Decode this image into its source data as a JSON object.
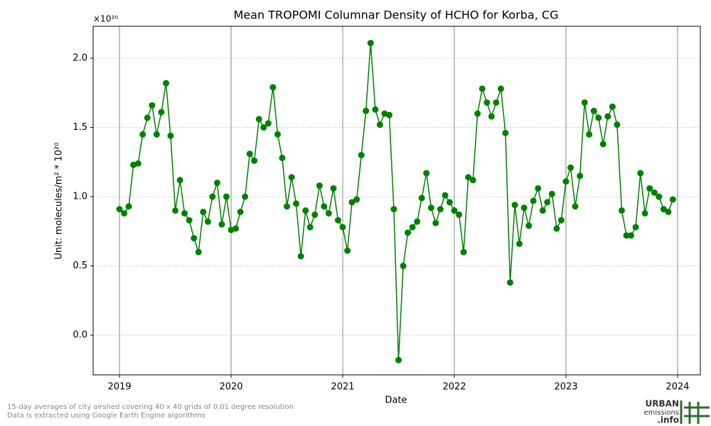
{
  "chart_data": {
    "type": "line",
    "title": "Mean TROPOMI Columnar Density of HCHO for Korba, CG",
    "x_label": "Date",
    "y_label": "Unit: molecules/m² * 10²⁰",
    "y_multiplier": "×10²⁰",
    "footnotes": [
      "15-day averages of city airshed covering 40 x 40 grids of 0.01 degree resolution",
      "Data is extracted using Google Earth Engine algorithms"
    ],
    "logo": [
      "URBAN",
      "emissions",
      ".info"
    ],
    "grid": true,
    "xlim": [
      2018.764,
      2024.204
    ],
    "xticks": [
      2019,
      2020,
      2021,
      2022,
      2023,
      2024
    ],
    "ylim": [
      -0.287,
      2.231
    ],
    "yticks": [
      {
        "value": 0,
        "label": "0.0"
      },
      {
        "value": 0.5,
        "label": "0.5"
      },
      {
        "value": 1,
        "label": "1.0"
      },
      {
        "value": 1.5,
        "label": "1.5"
      },
      {
        "value": 2,
        "label": "2.0"
      }
    ],
    "x": [
      2019.0,
      2019.042,
      2019.083,
      2019.125,
      2019.167,
      2019.208,
      2019.25,
      2019.292,
      2019.333,
      2019.375,
      2019.417,
      2019.458,
      2019.5,
      2019.542,
      2019.583,
      2019.625,
      2019.667,
      2019.708,
      2019.75,
      2019.792,
      2019.833,
      2019.875,
      2019.917,
      2019.958,
      2020.0,
      2020.042,
      2020.083,
      2020.125,
      2020.167,
      2020.208,
      2020.25,
      2020.292,
      2020.333,
      2020.375,
      2020.417,
      2020.458,
      2020.5,
      2020.542,
      2020.583,
      2020.625,
      2020.667,
      2020.708,
      2020.75,
      2020.792,
      2020.833,
      2020.875,
      2020.917,
      2020.958,
      2021.0,
      2021.042,
      2021.083,
      2021.125,
      2021.167,
      2021.208,
      2021.25,
      2021.292,
      2021.333,
      2021.375,
      2021.417,
      2021.458,
      2021.5,
      2021.542,
      2021.583,
      2021.625,
      2021.667,
      2021.708,
      2021.75,
      2021.792,
      2021.833,
      2021.875,
      2021.917,
      2021.958,
      2022.0,
      2022.042,
      2022.083,
      2022.125,
      2022.167,
      2022.208,
      2022.25,
      2022.292,
      2022.333,
      2022.375,
      2022.417,
      2022.458,
      2022.5,
      2022.542,
      2022.583,
      2022.625,
      2022.667,
      2022.708,
      2022.75,
      2022.792,
      2022.833,
      2022.875,
      2022.917,
      2022.958,
      2023.0,
      2023.042,
      2023.083,
      2023.125,
      2023.167,
      2023.208,
      2023.25,
      2023.292,
      2023.333,
      2023.375,
      2023.417,
      2023.458,
      2023.5,
      2023.542,
      2023.583,
      2023.625,
      2023.667,
      2023.708,
      2023.75,
      2023.792,
      2023.833,
      2023.875,
      2023.917,
      2023.958
    ],
    "series": [
      {
        "name": "HCHO",
        "color": "#008000",
        "values": [
          0.91,
          0.88,
          0.93,
          1.23,
          1.24,
          1.45,
          1.57,
          1.66,
          1.45,
          1.61,
          1.82,
          1.44,
          0.9,
          1.12,
          0.88,
          0.83,
          0.7,
          0.6,
          0.89,
          0.82,
          1.0,
          1.1,
          0.8,
          1.0,
          0.76,
          0.77,
          0.89,
          1.0,
          1.31,
          1.26,
          1.56,
          1.5,
          1.53,
          1.79,
          1.45,
          1.28,
          0.93,
          1.14,
          0.95,
          0.57,
          0.9,
          0.78,
          0.87,
          1.08,
          0.93,
          0.88,
          1.06,
          0.83,
          0.78,
          0.61,
          0.96,
          0.98,
          1.3,
          1.62,
          2.11,
          1.63,
          1.52,
          1.6,
          1.59,
          0.91,
          -0.18,
          0.5,
          0.74,
          0.78,
          0.82,
          0.99,
          1.17,
          0.92,
          0.81,
          0.91,
          1.01,
          0.96,
          0.9,
          0.87,
          0.6,
          1.14,
          1.12,
          1.6,
          1.78,
          1.68,
          1.58,
          1.68,
          1.78,
          1.46,
          0.38,
          0.94,
          0.66,
          0.92,
          0.79,
          0.97,
          1.06,
          0.9,
          0.96,
          1.02,
          0.77,
          0.83,
          1.11,
          1.21,
          0.93,
          1.15,
          1.68,
          1.45,
          1.62,
          1.57,
          1.38,
          1.58,
          1.65,
          1.52,
          0.9,
          0.72,
          0.72,
          0.78,
          1.17,
          0.88,
          1.06,
          1.03,
          1.0,
          0.91,
          0.89,
          0.98
        ]
      }
    ]
  }
}
